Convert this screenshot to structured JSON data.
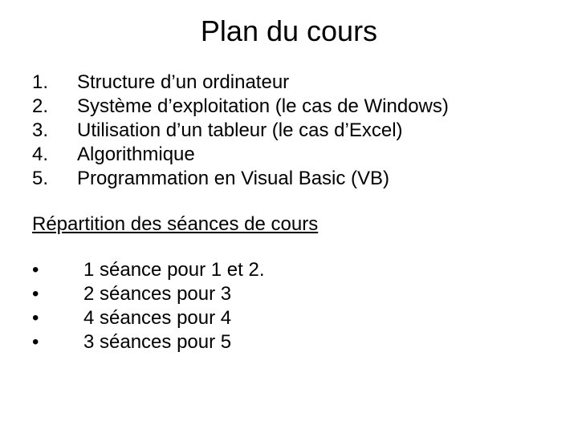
{
  "title": "Plan du cours",
  "numbered_items": [
    {
      "n": "1.",
      "text": "Structure d’un ordinateur"
    },
    {
      "n": "2.",
      "text": "Système d’exploitation (le cas de Windows)"
    },
    {
      "n": "3.",
      "text": "Utilisation d’un tableur (le cas d’Excel)"
    },
    {
      "n": "4.",
      "text": "Algorithmique"
    },
    {
      "n": "5.",
      "text": "Programmation en Visual Basic (VB)"
    }
  ],
  "subheading": "Répartition des séances de cours",
  "bullet_items": [
    "1 séance pour 1 et 2.",
    "2 séances pour 3",
    "4 séances pour 4",
    "3 séances pour 5"
  ],
  "bullet_char": "•",
  "typography": {
    "title_fontsize": 36,
    "body_fontsize": 24,
    "font_family": "Arial",
    "text_color": "#000000",
    "background_color": "#ffffff"
  }
}
